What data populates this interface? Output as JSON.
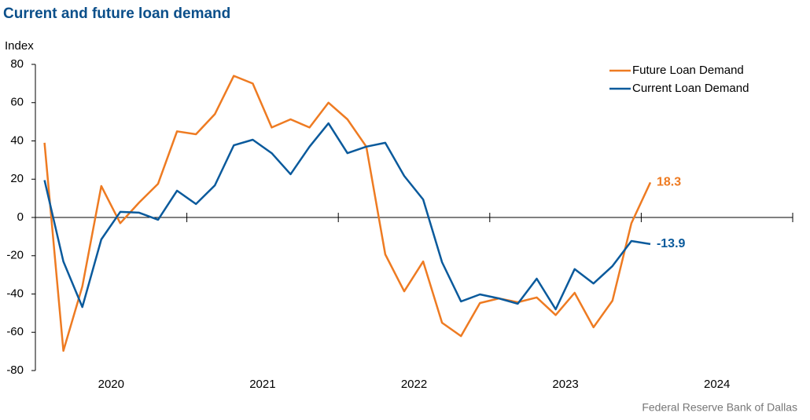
{
  "chart_data": {
    "type": "line",
    "title": "Current and future loan demand",
    "ylabel": "Index",
    "source": "Federal Reserve Bank of Dallas",
    "x": [
      2020.06,
      2020.185,
      2020.31,
      2020.435,
      2020.56,
      2020.685,
      2020.81,
      2020.935,
      2021.06,
      2021.185,
      2021.31,
      2021.435,
      2021.56,
      2021.685,
      2021.81,
      2021.935,
      2022.06,
      2022.185,
      2022.31,
      2022.435,
      2022.56,
      2022.685,
      2022.81,
      2022.935,
      2023.06,
      2023.185,
      2023.31,
      2023.435,
      2023.56,
      2023.685,
      2023.81,
      2023.935,
      2024.06
    ],
    "series": [
      {
        "name": "Future Loan Demand",
        "color": "#ee7b22",
        "values": [
          39,
          -69.7,
          -36,
          16.4,
          -3,
          7.8,
          17.6,
          45,
          43.5,
          54,
          74,
          70,
          47,
          51.3,
          47,
          60,
          51.3,
          37,
          -19.3,
          -38.6,
          -23,
          -55,
          -62,
          -44.7,
          -42.3,
          -44.3,
          -41.8,
          -51,
          -39.4,
          -57.4,
          -43.5,
          -3,
          18.3
        ]
      },
      {
        "name": "Current Loan Demand",
        "color": "#0a5a9c",
        "values": [
          19.5,
          -23,
          -46.8,
          -11.5,
          2.9,
          2.5,
          -1.2,
          14,
          7,
          16.8,
          37.7,
          40.6,
          33.6,
          22.6,
          37,
          49.2,
          33.6,
          37,
          39,
          21.7,
          9.4,
          -23.4,
          -43.9,
          -40.2,
          -42.3,
          -45.1,
          -32,
          -48,
          -27,
          -34.5,
          -25.4,
          -12.3,
          -13.9
        ]
      }
    ],
    "label_last": true,
    "xlim": [
      2020,
      2025
    ],
    "xticks": [
      2020,
      2021,
      2022,
      2023,
      2024,
      2025
    ],
    "xtick_labels": [
      {
        "value": 2020.5,
        "label": "2020"
      },
      {
        "value": 2021.5,
        "label": "2021"
      },
      {
        "value": 2022.5,
        "label": "2022"
      },
      {
        "value": 2023.5,
        "label": "2023"
      },
      {
        "value": 2024.5,
        "label": "2024"
      }
    ],
    "ylim": [
      -80,
      80
    ],
    "yticks": [
      -80,
      -60,
      -40,
      -20,
      0,
      20,
      40,
      60,
      80
    ],
    "legend": "upper right"
  }
}
